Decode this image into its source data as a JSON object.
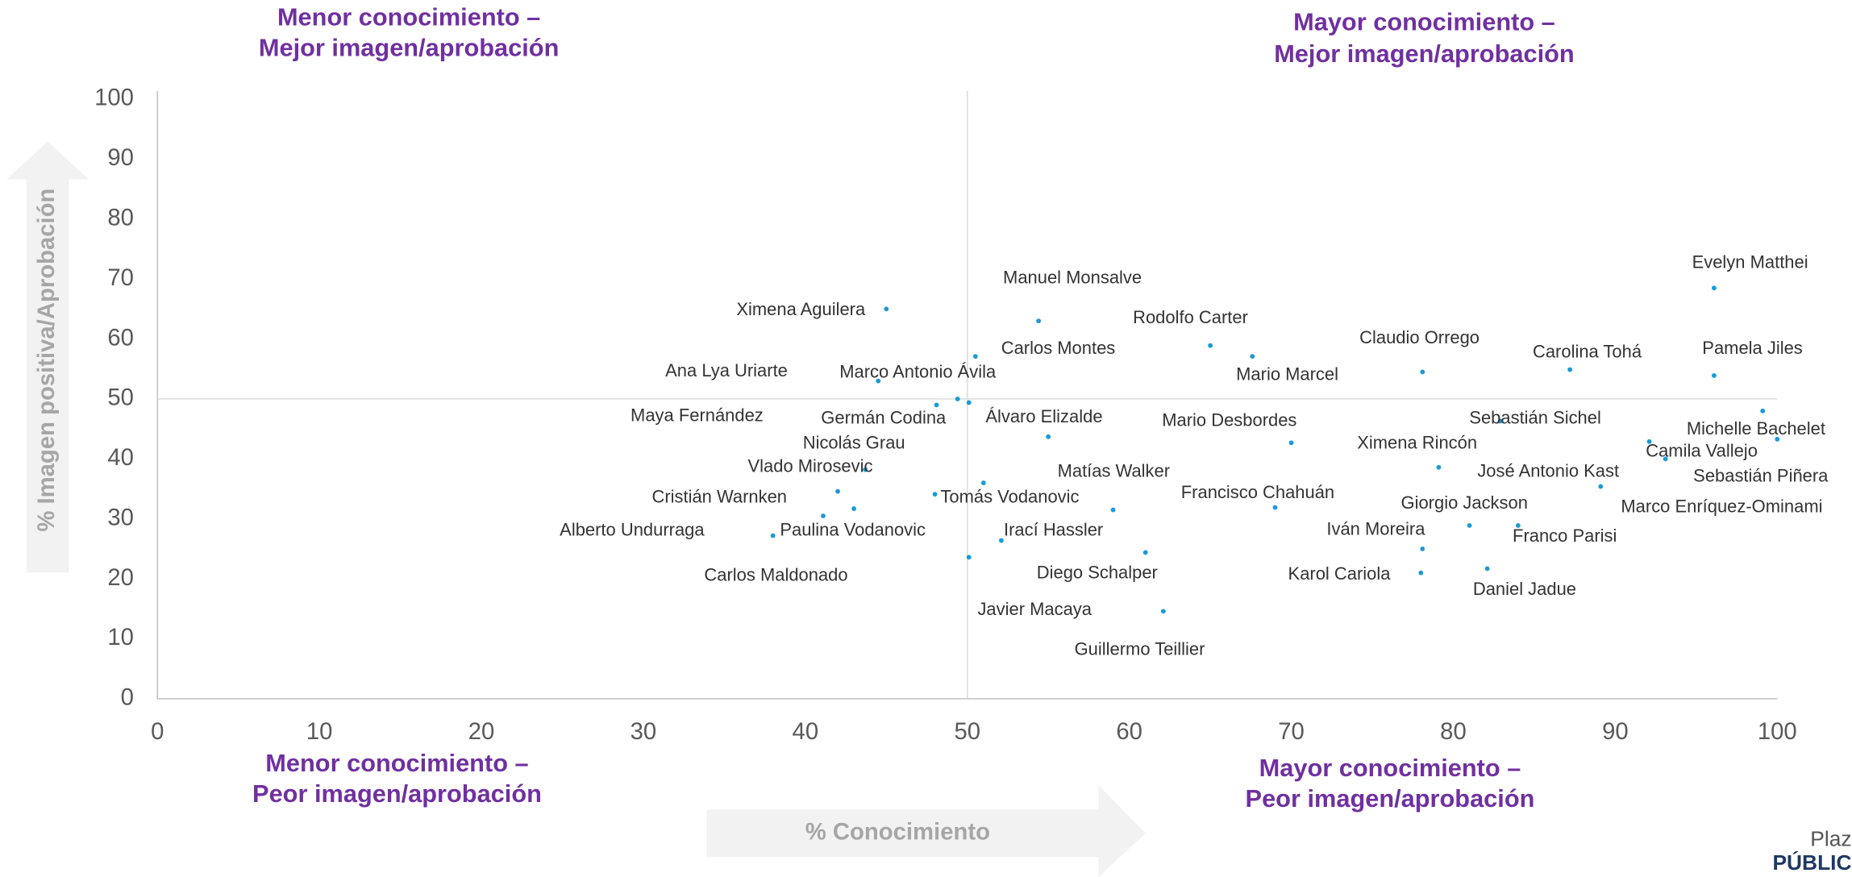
{
  "chart_data": {
    "type": "scatter",
    "x_label": "% Conocimiento",
    "y_label": "% Imagen positiva/Aprobación",
    "quadrant_labels": [
      [
        "Menor conocimiento –",
        "Mejor imagen/aprobación"
      ],
      [
        "Mayor conocimiento –",
        "Mejor imagen/aprobación"
      ],
      [
        "Menor conocimiento –",
        "Peor imagen/aprobación"
      ],
      [
        "Mayor conocimiento –",
        "Peor imagen/aprobación"
      ]
    ],
    "logo": [
      "Plaz",
      "PÚBLIC"
    ],
    "xlim": [
      0,
      100
    ],
    "xticks": [
      0,
      10,
      20,
      30,
      40,
      50,
      60,
      70,
      80,
      90,
      100
    ],
    "ylim": [
      0,
      100
    ],
    "yticks": [
      0,
      10,
      20,
      30,
      40,
      50,
      60,
      70,
      80,
      90,
      100
    ],
    "quadrant_lines": {
      "x": 50,
      "y": 50
    },
    "color": "#1a9bd7",
    "labels": [
      "Ximena Aguilera",
      "Manuel Monsalve",
      "Carlos Montes",
      "Rodolfo Carter",
      "Mario Marcel",
      "Claudio Orrego",
      "Carolina Tohá",
      "Evelyn Matthei",
      "Pamela Jiles",
      "Ana Lya Uriarte",
      "Marco Antonio Ávila",
      "Maya Fernández",
      "Germán Codina",
      "Álvaro Elizalde",
      "Nicolás Grau",
      "Vlado Mirosevic",
      "Cristián Warnken",
      "Alberto Undurraga",
      "Paulina Vodanovic",
      "Carlos Maldonado",
      "Tomás Vodanovic",
      "Matías Walker",
      "Irací Hassler",
      "Diego Schalper",
      "Javier Macaya",
      "Guillermo Teillier",
      "Mario Desbordes",
      "Francisco Chahuán",
      "Ximena Rincón",
      "Sebastián Sichel",
      "Giorgio Jackson",
      "Iván Moreira",
      "Karol Cariola",
      "Daniel Jadue",
      "Franco Parisi",
      "José Antonio Kast",
      "Michelle Bachelet",
      "Camila Vallejo",
      "Sebastián Piñera",
      "Marco Enríquez-Ominami"
    ],
    "x": [
      45.0,
      54.4,
      50.5,
      65.0,
      67.6,
      78.1,
      87.2,
      96.1,
      96.1,
      44.5,
      49.4,
      48.1,
      50.1,
      55.0,
      43.0,
      43.7,
      42.0,
      38.0,
      41.1,
      50.1,
      48.0,
      51.0,
      52.1,
      59.0,
      61.0,
      62.1,
      70.0,
      69.0,
      79.1,
      82.9,
      81.0,
      78.1,
      78.0,
      82.1,
      84.0,
      89.1,
      100.0,
      92.1,
      99.1,
      93.1
    ],
    "y": [
      65.0,
      63.0,
      57.1,
      58.9,
      57.1,
      54.5,
      54.9,
      68.5,
      53.9,
      53.0,
      50.0,
      49.0,
      49.4,
      43.7,
      31.7,
      38.2,
      34.6,
      27.2,
      30.5,
      23.6,
      34.1,
      36.0,
      26.4,
      31.5,
      24.4,
      14.6,
      42.7,
      31.9,
      38.6,
      46.3,
      28.9,
      25.0,
      21.0,
      21.7,
      28.9,
      35.4,
      43.3,
      42.9,
      48.0,
      40.0
    ]
  }
}
